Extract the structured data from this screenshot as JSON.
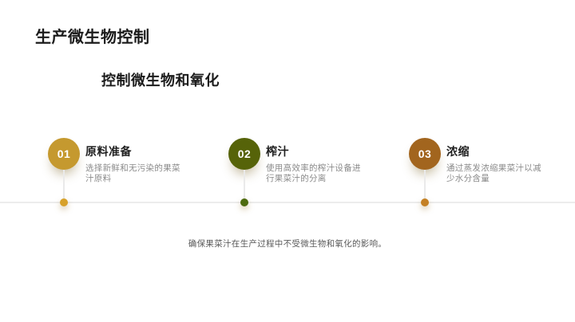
{
  "slide": {
    "title": "生产微生物控制",
    "subtitle": "控制微生物和氧化",
    "footer_note": "确保果菜汁在生产过程中不受微生物和氧化的影响。"
  },
  "timeline": {
    "items": [
      {
        "number": "01",
        "heading": "原料准备",
        "description": "选择新鲜和无污染的果菜汁原料",
        "circle_color": "#C5992F",
        "dot_color": "#D7A12A"
      },
      {
        "number": "02",
        "heading": "榨汁",
        "description": "使用高效率的榨汁设备进行果菜汁的分离",
        "circle_color": "#566309",
        "dot_color": "#4E6B10"
      },
      {
        "number": "03",
        "heading": "浓缩",
        "description": "通过蒸发浓缩果菜汁以减少水分含量",
        "circle_color": "#A2651E",
        "dot_color": "#C48024"
      }
    ]
  },
  "colors": {
    "background": "#ffffff",
    "timeline_line": "#ececec",
    "title_text": "#1b1b1b",
    "description_text": "#8a8a8a",
    "note_text": "#5a5a5a"
  }
}
